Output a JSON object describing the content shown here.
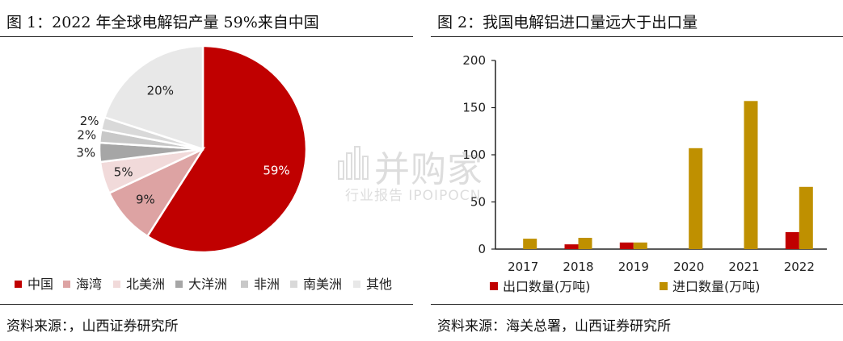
{
  "left": {
    "title": "图 1：2022 年全球电解铝产量 59%来自中国",
    "source": "资料来源：，山西证券研究所"
  },
  "right": {
    "title": "图 2：我国电解铝进口量远大于出口量",
    "source": "资料来源：海关总署，山西证券研究所"
  },
  "watermark": {
    "main": "并购家",
    "sub": "行业报告 IPOIPOCN"
  },
  "chart_data": [
    {
      "type": "pie",
      "categories": [
        "中国",
        "海湾",
        "北美洲",
        "大洋洲",
        "非洲",
        "南美洲",
        "其他"
      ],
      "values": [
        59,
        9,
        5,
        3,
        2,
        2,
        20
      ],
      "labels": [
        "59%",
        "9%",
        "5%",
        "3%",
        "2%",
        "2%",
        "20%"
      ],
      "colors": [
        "#c00000",
        "#dda3a3",
        "#f1dada",
        "#a6a6a6",
        "#c8c8c8",
        "#d9d9d9",
        "#e8e8e8"
      ],
      "legend_placement": "bottom"
    },
    {
      "type": "bar",
      "categories": [
        "2017",
        "2018",
        "2019",
        "2020",
        "2021",
        "2022"
      ],
      "series": [
        {
          "name": "出口数量(万吨)",
          "values": [
            0,
            5,
            7,
            0,
            0,
            18
          ],
          "color": "#c00000"
        },
        {
          "name": "进口数量(万吨)",
          "values": [
            11,
            12,
            7,
            107,
            157,
            66
          ],
          "color": "#bf9000"
        }
      ],
      "ylim": [
        0,
        200
      ],
      "yticks": [
        "0",
        "50",
        "100",
        "150",
        "200"
      ],
      "grid": false,
      "legend_placement": "bottom"
    }
  ]
}
